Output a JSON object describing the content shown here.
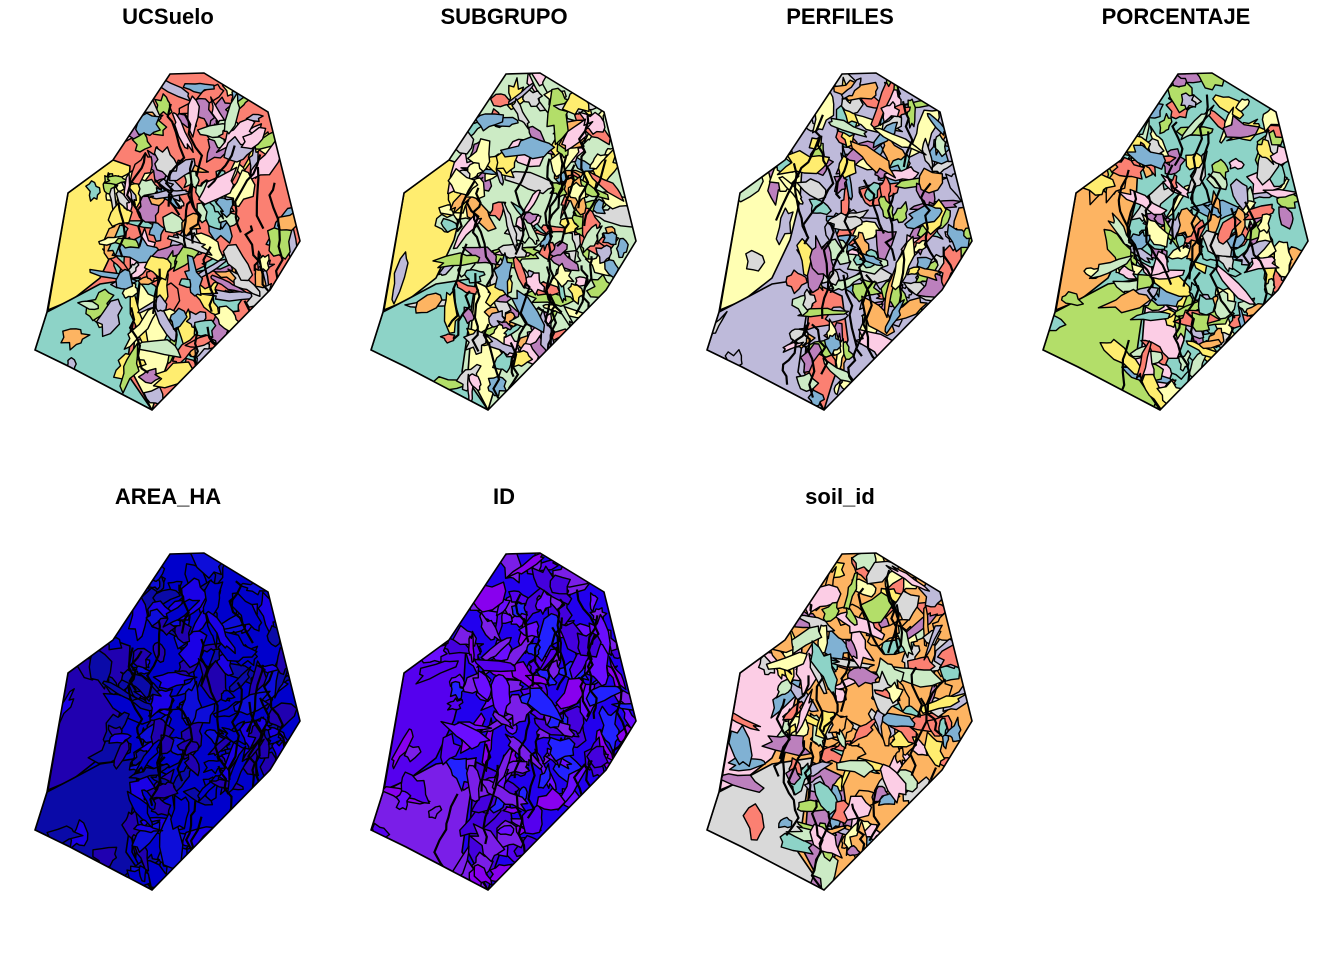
{
  "figure": {
    "panels": [
      {
        "title": "UCSuelo",
        "palette": "set3",
        "base": "#fb8072",
        "seed": 11
      },
      {
        "title": "SUBGRUPO",
        "palette": "set3",
        "base": "#ccebc5",
        "seed": 23
      },
      {
        "title": "PERFILES",
        "palette": "set3",
        "base": "#bebada",
        "seed": 37
      },
      {
        "title": "PORCENTAJE",
        "palette": "set3",
        "base": "#8dd3c7",
        "seed": 41
      },
      {
        "title": "AREA_HA",
        "palette": "area",
        "base": "#0000cc",
        "seed": 53
      },
      {
        "title": "ID",
        "palette": "id",
        "base": "#2200ee",
        "seed": 67
      },
      {
        "title": "soil_id",
        "palette": "set3",
        "base": "#fdb462",
        "seed": 79
      }
    ],
    "colors": {
      "set3": [
        "#8dd3c7",
        "#ffffb3",
        "#bebada",
        "#fb8072",
        "#80b1d3",
        "#fdb462",
        "#b3de69",
        "#fccde5",
        "#d9d9d9",
        "#bc80bd",
        "#ccebc5",
        "#ffed6f"
      ],
      "area": [
        "#0000cc",
        "#1a00e6",
        "#0d0dd9",
        "#2000b0",
        "#0a0aa8"
      ],
      "id": [
        "#6a0dff",
        "#5500ee",
        "#7a1ee8",
        "#4400dd",
        "#2222ff",
        "#8800ee"
      ]
    }
  }
}
